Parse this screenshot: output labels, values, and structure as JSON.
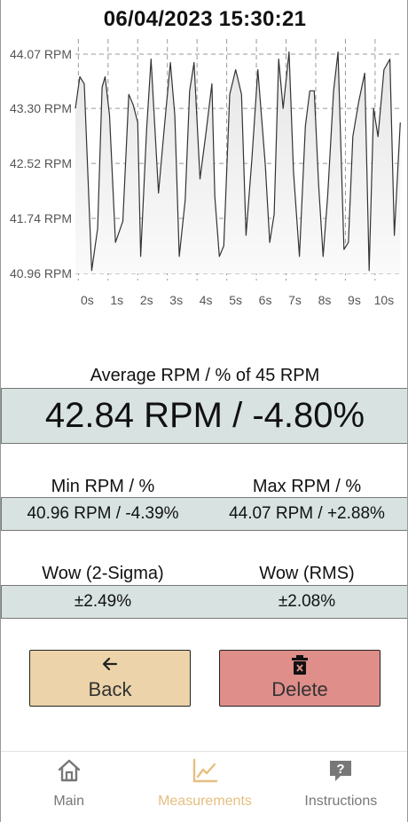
{
  "header": {
    "timestamp": "06/04/2023 15:30:21"
  },
  "chart_data": {
    "type": "line",
    "ylabels": [
      "44.07 RPM",
      "43.30 RPM",
      "42.52 RPM",
      "41.74 RPM",
      "40.96 RPM"
    ],
    "yticks": [
      44.07,
      43.3,
      42.52,
      41.74,
      40.96
    ],
    "xlabels": [
      "0s",
      "1s",
      "2s",
      "3s",
      "4s",
      "5s",
      "6s",
      "7s",
      "8s",
      "9s",
      "10s"
    ],
    "ylim": [
      40.96,
      44.07
    ],
    "xlim": [
      0,
      11
    ],
    "grid": true,
    "series": [
      {
        "x": [
          0.0,
          0.15,
          0.3,
          0.55,
          0.75,
          0.9,
          1.0,
          1.15,
          1.35,
          1.6,
          1.8,
          1.95,
          2.1,
          2.2,
          2.4,
          2.55,
          2.8,
          3.0,
          3.2,
          3.35,
          3.5,
          3.7,
          3.85,
          4.0,
          4.2,
          4.4,
          4.6,
          4.7,
          4.85,
          5.0,
          5.2,
          5.4,
          5.6,
          5.75,
          5.95,
          6.15,
          6.4,
          6.55,
          6.7,
          6.85,
          7.0,
          7.2,
          7.35,
          7.55,
          7.75,
          7.9,
          8.05,
          8.2,
          8.35,
          8.5,
          8.7,
          8.85,
          9.05,
          9.2,
          9.35,
          9.55,
          9.75,
          9.9,
          10.05,
          10.2,
          10.4,
          10.6,
          10.75,
          10.95
        ],
        "y": [
          43.3,
          43.75,
          43.65,
          41.0,
          41.6,
          43.6,
          43.75,
          43.2,
          41.4,
          41.7,
          43.5,
          43.35,
          43.1,
          41.2,
          43.0,
          44.0,
          42.1,
          43.05,
          43.95,
          43.2,
          41.2,
          42.0,
          43.55,
          43.95,
          42.3,
          42.95,
          43.65,
          42.05,
          41.2,
          41.35,
          43.5,
          43.85,
          43.5,
          41.5,
          42.6,
          43.85,
          42.5,
          41.4,
          41.8,
          44.0,
          43.3,
          44.1,
          42.4,
          41.2,
          43.05,
          43.55,
          43.55,
          42.2,
          41.2,
          42.05,
          43.55,
          44.1,
          41.3,
          41.4,
          42.9,
          43.4,
          43.8,
          41.0,
          43.3,
          42.9,
          43.85,
          44.0,
          41.5,
          43.1
        ]
      }
    ]
  },
  "average": {
    "label": "Average RPM / % of 45 RPM",
    "value": "42.84 RPM / -4.80%"
  },
  "min": {
    "label": "Min RPM / %",
    "value": "40.96 RPM / -4.39%"
  },
  "max": {
    "label": "Max RPM / %",
    "value": "44.07 RPM / +2.88%"
  },
  "wow_sigma": {
    "label": "Wow (2-Sigma)",
    "value": "±2.49%"
  },
  "wow_rms": {
    "label": "Wow (RMS)",
    "value": "±2.08%"
  },
  "buttons": {
    "back": "Back",
    "delete": "Delete",
    "back_icon": "arrow-left-icon",
    "delete_icon": "trash-icon"
  },
  "tabs": [
    {
      "label": "Main",
      "icon": "home-icon",
      "active": false
    },
    {
      "label": "Measurements",
      "icon": "chart-icon",
      "active": true
    },
    {
      "label": "Instructions",
      "icon": "question-icon",
      "active": false
    }
  ],
  "colors": {
    "accent": "#e6bf80",
    "value_box": "#d7e2e1",
    "back_button": "#ecd3a9",
    "delete_button": "#df8e8a"
  }
}
